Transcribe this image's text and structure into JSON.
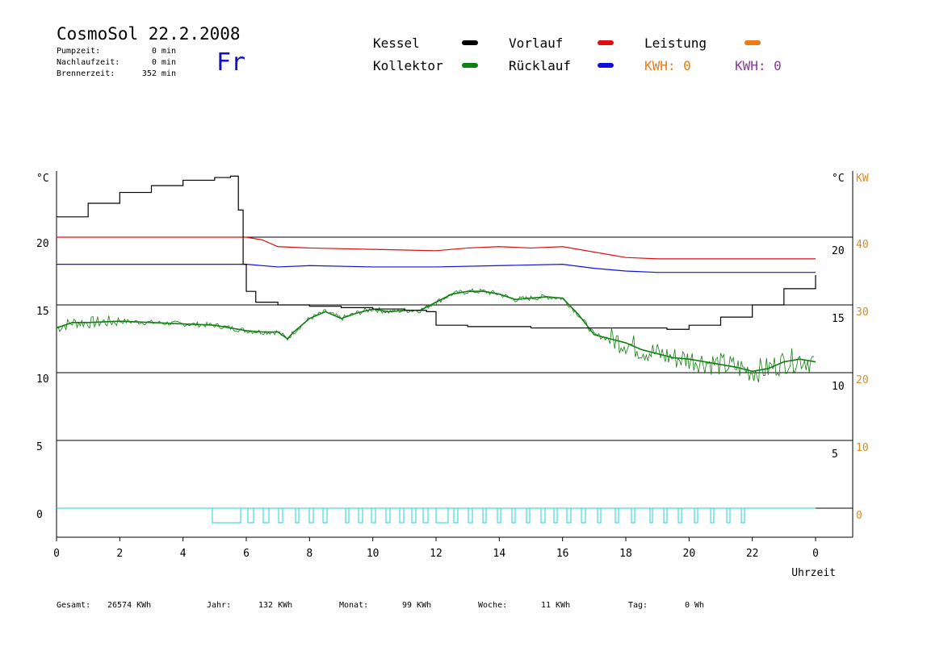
{
  "header": {
    "title": "CosmoSol 22.2.2008",
    "pump_label": "Pumpzeit:",
    "pump_value": "0 min",
    "nach_label": "Nachlaufzeit:",
    "nach_value": "0 min",
    "brenn_label": "Brennerzeit:",
    "brenn_value": "352 min",
    "weekday": "Fr"
  },
  "legend": {
    "kessel": "Kessel",
    "vorlauf": "Vorlauf",
    "leistung": "Leistung",
    "kollektor": "Kollektor",
    "ruecklauf": "Rücklauf",
    "kwh1": "KWH: 0",
    "kwh2": "KWH: 0"
  },
  "colors": {
    "kessel": "#000000",
    "vorlauf": "#dd1010",
    "leistung": "#ee7a10",
    "kollektor": "#108010",
    "ruecklauf": "#1010dd",
    "kwh2": "#8a3a9a",
    "pump": "#20d0d8"
  },
  "footer": {
    "gesamt_label": "Gesamt:",
    "gesamt_value": "26574 KWh",
    "jahr_label": "Jahr:",
    "jahr_value": "132 KWh",
    "monat_label": "Monat:",
    "monat_value": "99 KWh",
    "woche_label": "Woche:",
    "woche_value": "11 KWh",
    "tag_label": "Tag:",
    "tag_value": "0 Wh"
  },
  "chart_data": {
    "type": "line",
    "xlabel": "Uhrzeit",
    "xlim": [
      0,
      24
    ],
    "ylim": [
      -2,
      25
    ],
    "x_ticks": [
      "0",
      "2",
      "4",
      "6",
      "8",
      "10",
      "12",
      "14",
      "16",
      "18",
      "20",
      "22",
      "0"
    ],
    "y_left_label": "°C",
    "y_left_ticks": [
      "0",
      "5",
      "10",
      "15",
      "20"
    ],
    "y_right1_label": "°C",
    "y_right1_ticks": [
      "5",
      "10",
      "15",
      "20"
    ],
    "y_right2_label": "KW",
    "y_right2_ticks": [
      "0",
      "10",
      "20",
      "30",
      "40"
    ],
    "grid_y": [
      0,
      5,
      10,
      15,
      20
    ],
    "series": [
      {
        "name": "Kessel",
        "key": "kessel",
        "x": [
          0,
          1,
          2,
          3,
          4,
          5,
          5.5,
          5.6,
          5.75,
          5.9,
          6.0,
          6.3,
          7,
          8,
          9,
          10,
          11,
          11.7,
          12,
          13,
          14,
          15,
          16,
          17,
          18,
          19,
          19.3,
          20,
          21,
          22,
          23,
          24
        ],
        "y": [
          21.5,
          22.5,
          23.3,
          23.8,
          24.2,
          24.4,
          24.5,
          24.5,
          22,
          18,
          16,
          15.2,
          15.0,
          14.9,
          14.8,
          14.7,
          14.6,
          14.5,
          13.5,
          13.4,
          13.4,
          13.3,
          13.3,
          13.3,
          13.3,
          13.3,
          13.2,
          13.5,
          14.1,
          15.0,
          16.2,
          17.2
        ]
      },
      {
        "name": "Vorlauf",
        "key": "vorlauf",
        "x": [
          0,
          2,
          4,
          6,
          6.5,
          7,
          8,
          10,
          12,
          13,
          14,
          15,
          16,
          17,
          18,
          19,
          20,
          22,
          24
        ],
        "y": [
          20.0,
          20.0,
          20.0,
          20.0,
          19.8,
          19.3,
          19.2,
          19.1,
          19.0,
          19.2,
          19.3,
          19.2,
          19.3,
          18.9,
          18.5,
          18.4,
          18.4,
          18.4,
          18.4
        ]
      },
      {
        "name": "Rücklauf",
        "key": "ruecklauf",
        "x": [
          0,
          2,
          4,
          6,
          7,
          8,
          10,
          12,
          14,
          16,
          17,
          18,
          19,
          20,
          22,
          24
        ],
        "y": [
          18.0,
          18.0,
          18.0,
          18.0,
          17.8,
          17.9,
          17.8,
          17.8,
          17.9,
          18.0,
          17.7,
          17.5,
          17.4,
          17.4,
          17.4,
          17.4
        ]
      },
      {
        "name": "Kollektor",
        "key": "kollektor",
        "x": [
          0,
          0.5,
          1,
          2,
          3,
          4,
          5,
          5.5,
          6,
          6.5,
          7,
          7.3,
          7.5,
          8,
          8.5,
          9,
          9.5,
          10,
          10.5,
          11,
          11.5,
          12,
          12.5,
          13,
          13.5,
          14,
          14.5,
          15,
          15.5,
          16,
          16.5,
          17,
          17.5,
          18,
          18.5,
          19,
          19.5,
          20,
          20.5,
          21,
          21.5,
          22,
          22.5,
          23,
          23.5,
          24
        ],
        "y": [
          13.3,
          13.7,
          13.7,
          13.8,
          13.7,
          13.6,
          13.5,
          13.3,
          13.1,
          13.0,
          13.0,
          12.5,
          13.0,
          14.0,
          14.5,
          14.0,
          14.4,
          14.7,
          14.5,
          14.6,
          14.6,
          15.2,
          15.8,
          16.0,
          16.0,
          15.8,
          15.4,
          15.5,
          15.6,
          15.5,
          14.3,
          12.8,
          12.5,
          12.2,
          11.7,
          11.4,
          11.1,
          11.0,
          10.8,
          10.6,
          10.4,
          10.1,
          10.3,
          10.8,
          11.0,
          10.8
        ]
      }
    ]
  }
}
